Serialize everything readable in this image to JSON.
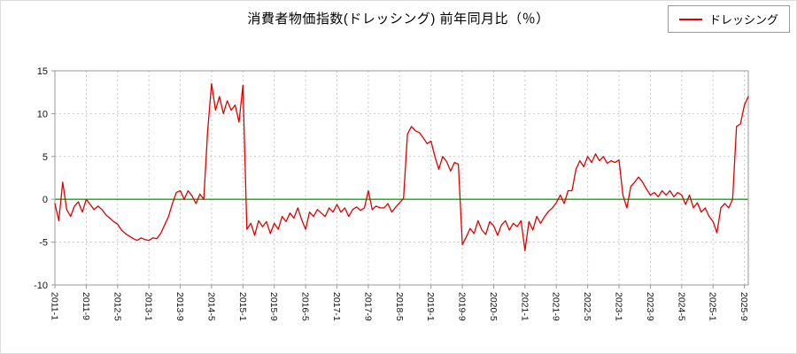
{
  "colors": {
    "line": "#e00000",
    "zero_line": "#00b200",
    "grid": "#c8c8c8",
    "plot_border": "#999999",
    "tick_text": "#111111"
  },
  "chart_data": {
    "type": "line",
    "title": "消費者物価指数(ドレッシング) 前年同月比（％）",
    "series_name": "ドレッシング",
    "start_year": 2011,
    "start_month": 1,
    "ylim": [
      -10,
      15
    ],
    "yticks": [
      15,
      10,
      5,
      0,
      -5,
      -10
    ],
    "xtick_every_months": 8,
    "xtick_labels": [
      "2011-1",
      "2011-9",
      "2012-5",
      "2013-1",
      "2013-9",
      "2014-5",
      "2015-1",
      "2015-9",
      "2016-5",
      "2017-1",
      "2017-9",
      "2018-5",
      "2019-1",
      "2019-9",
      "2020-5",
      "2021-1",
      "2021-9",
      "2022-5",
      "2023-1",
      "2023-9",
      "2024-5",
      "2025-1",
      "2025-9"
    ],
    "values": [
      -0.5,
      -2.5,
      2.0,
      -1.2,
      -2.0,
      -0.8,
      -0.3,
      -1.5,
      0.0,
      -0.6,
      -1.2,
      -0.8,
      -1.2,
      -1.8,
      -2.2,
      -2.6,
      -2.9,
      -3.6,
      -4.0,
      -4.3,
      -4.6,
      -4.8,
      -4.5,
      -4.7,
      -4.8,
      -4.5,
      -4.6,
      -4.0,
      -3.0,
      -2.0,
      -0.5,
      0.8,
      1.0,
      0.0,
      1.0,
      0.4,
      -0.5,
      0.6,
      0.0,
      8.0,
      13.5,
      10.4,
      12.0,
      10.0,
      11.5,
      10.4,
      11.0,
      9.0,
      13.3,
      -3.5,
      -2.8,
      -4.2,
      -2.5,
      -3.2,
      -2.6,
      -4.0,
      -2.8,
      -3.5,
      -2.0,
      -2.6,
      -1.6,
      -2.2,
      -1.0,
      -2.4,
      -3.5,
      -1.5,
      -2.0,
      -1.2,
      -1.6,
      -2.0,
      -1.0,
      -1.5,
      -0.6,
      -1.5,
      -1.0,
      -2.0,
      -1.2,
      -0.9,
      -1.3,
      -1.0,
      1.0,
      -1.2,
      -0.8,
      -1.0,
      -1.0,
      -0.5,
      -1.5,
      -0.9,
      -0.4,
      0.1,
      7.6,
      8.5,
      8.0,
      7.8,
      7.2,
      6.5,
      6.8,
      5.0,
      3.5,
      5.0,
      4.4,
      3.3,
      4.3,
      4.1,
      -5.3,
      -4.4,
      -3.4,
      -4.0,
      -2.5,
      -3.6,
      -4.1,
      -2.6,
      -3.1,
      -4.2,
      -3.0,
      -2.5,
      -3.6,
      -2.8,
      -3.2,
      -2.5,
      -6.0,
      -2.6,
      -3.6,
      -2.0,
      -2.8,
      -2.0,
      -1.4,
      -1.0,
      -0.4,
      0.5,
      -0.5,
      1.0,
      1.0,
      3.5,
      4.5,
      3.8,
      5.0,
      4.3,
      5.3,
      4.5,
      5.0,
      4.2,
      4.5,
      4.3,
      4.6,
      0.5,
      -1.0,
      1.5,
      2.0,
      2.6,
      2.0,
      1.2,
      0.5,
      0.8,
      0.3,
      1.0,
      0.5,
      1.0,
      0.3,
      0.8,
      0.5,
      -0.6,
      0.5,
      -1.0,
      -0.4,
      -1.5,
      -1.0,
      -2.0,
      -2.6,
      -3.9,
      -1.0,
      -0.5,
      -1.0,
      0.0,
      8.5,
      8.8,
      11.0,
      12.0
    ]
  }
}
